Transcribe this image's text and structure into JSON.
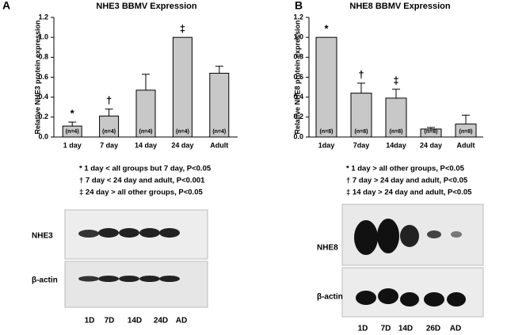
{
  "chart_data": [
    {
      "type": "bar",
      "panel": "A",
      "title": "NHE3 BBMV Expression",
      "y_label": "Relative NHE3 protein expression",
      "categories": [
        "1 day",
        "7 day",
        "14 day",
        "24 day",
        "Adult"
      ],
      "values": [
        0.11,
        0.21,
        0.47,
        1.0,
        0.64
      ],
      "errors": [
        0.04,
        0.07,
        0.16,
        null,
        0.07
      ],
      "n_labels": [
        "(n=4)",
        "(n=4)",
        "(n=4)",
        "(n=4)",
        "(n=4)"
      ],
      "symbols": [
        "*",
        "†",
        null,
        "‡",
        null
      ],
      "color": "#c8c8c8",
      "ylim": [
        0,
        1.2
      ],
      "yticks": [
        {
          "value": 0,
          "label": "0.0"
        },
        {
          "value": 0.2,
          "label": "0.2"
        },
        {
          "value": 0.4,
          "label": "0.4"
        },
        {
          "value": 0.6,
          "label": "0.6"
        },
        {
          "value": 0.8,
          "label": "0.8"
        },
        {
          "value": 1,
          "label": "1.0"
        },
        {
          "value": 1.2,
          "label": "1.2"
        }
      ],
      "notes": [
        "* 1 day < all groups but 7 day, P<0.05",
        "† 7 day < 24 day and adult, P<0.001",
        "‡ 24 day > all other groups, P<0.05"
      ],
      "blot": {
        "protein": "NHE3",
        "control": "β-actin",
        "lanes": [
          "1D",
          "7D",
          "14D",
          "24D",
          "AD"
        ]
      }
    },
    {
      "type": "bar",
      "panel": "B",
      "title": "NHE8 BBMV Expression",
      "y_label": "Relative NHE8 protein expression",
      "categories": [
        "1day",
        "7day",
        "14day",
        "24 day",
        "Adult"
      ],
      "values": [
        1.0,
        0.44,
        0.39,
        0.08,
        0.13
      ],
      "errors": [
        null,
        0.1,
        0.09,
        0.015,
        0.09
      ],
      "n_labels": [
        "(n=8)",
        "(n=8)",
        "(n=8)",
        "(n=8)",
        "(n=8)"
      ],
      "symbols": [
        "*",
        "†",
        "‡",
        null,
        null
      ],
      "color": "#c8c8c8",
      "ylim": [
        0,
        1.2
      ],
      "yticks": [
        {
          "value": 0,
          "label": "0.0"
        },
        {
          "value": 0.2,
          "label": "0.2"
        },
        {
          "value": 0.4,
          "label": "0.4"
        },
        {
          "value": 0.6,
          "label": "0.6"
        },
        {
          "value": 0.8,
          "label": "0.8"
        },
        {
          "value": 1,
          "label": "1.0"
        },
        {
          "value": 1.2,
          "label": "1.2"
        }
      ],
      "notes": [
        "* 1 day > all other groups, P<0.05",
        "† 7 day > 24 day and adult, P<0.05",
        "‡ 14 day > 24 day and adult, P<0.05"
      ],
      "blot": {
        "protein": "NHE8",
        "control": "β-actin",
        "lanes": [
          "1D",
          "7D",
          "14D",
          "26D",
          "AD"
        ]
      }
    }
  ]
}
